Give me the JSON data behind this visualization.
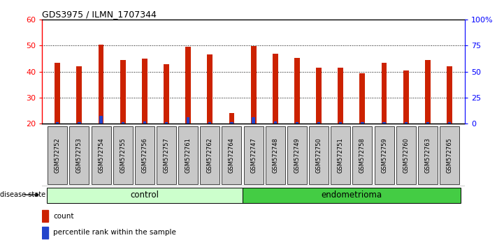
{
  "title": "GDS3975 / ILMN_1707344",
  "samples": [
    "GSM572752",
    "GSM572753",
    "GSM572754",
    "GSM572755",
    "GSM572756",
    "GSM572757",
    "GSM572761",
    "GSM572762",
    "GSM572764",
    "GSM572747",
    "GSM572748",
    "GSM572749",
    "GSM572750",
    "GSM572751",
    "GSM572758",
    "GSM572759",
    "GSM572760",
    "GSM572763",
    "GSM572765"
  ],
  "count_values": [
    43.5,
    42.0,
    50.5,
    44.5,
    45.0,
    43.0,
    49.5,
    46.5,
    24.0,
    49.8,
    46.8,
    45.2,
    41.5,
    41.5,
    39.5,
    43.5,
    40.5,
    44.5,
    42.0
  ],
  "percentile_values": [
    20.5,
    20.5,
    23.0,
    20.5,
    20.8,
    20.5,
    22.5,
    20.5,
    20.5,
    22.5,
    20.8,
    20.5,
    20.5,
    20.5,
    20.5,
    20.5,
    20.5,
    20.5,
    20.5
  ],
  "groups": [
    "control",
    "control",
    "control",
    "control",
    "control",
    "control",
    "control",
    "control",
    "control",
    "endometrioma",
    "endometrioma",
    "endometrioma",
    "endometrioma",
    "endometrioma",
    "endometrioma",
    "endometrioma",
    "endometrioma",
    "endometrioma",
    "endometrioma"
  ],
  "bar_color_red": "#cc2200",
  "bar_color_blue": "#2244cc",
  "ylim_left": [
    20,
    60
  ],
  "yticks_left": [
    20,
    30,
    40,
    50,
    60
  ],
  "yticks_right_pct": [
    0,
    25,
    50,
    75,
    100
  ],
  "control_color_light": "#ccffcc",
  "endometrioma_color": "#44cc44",
  "bar_width": 0.25,
  "bg_color": "#ffffff",
  "plot_bg": "#ffffff",
  "tick_label_bg": "#c8c8c8",
  "grid_dotted_color": "#000000"
}
